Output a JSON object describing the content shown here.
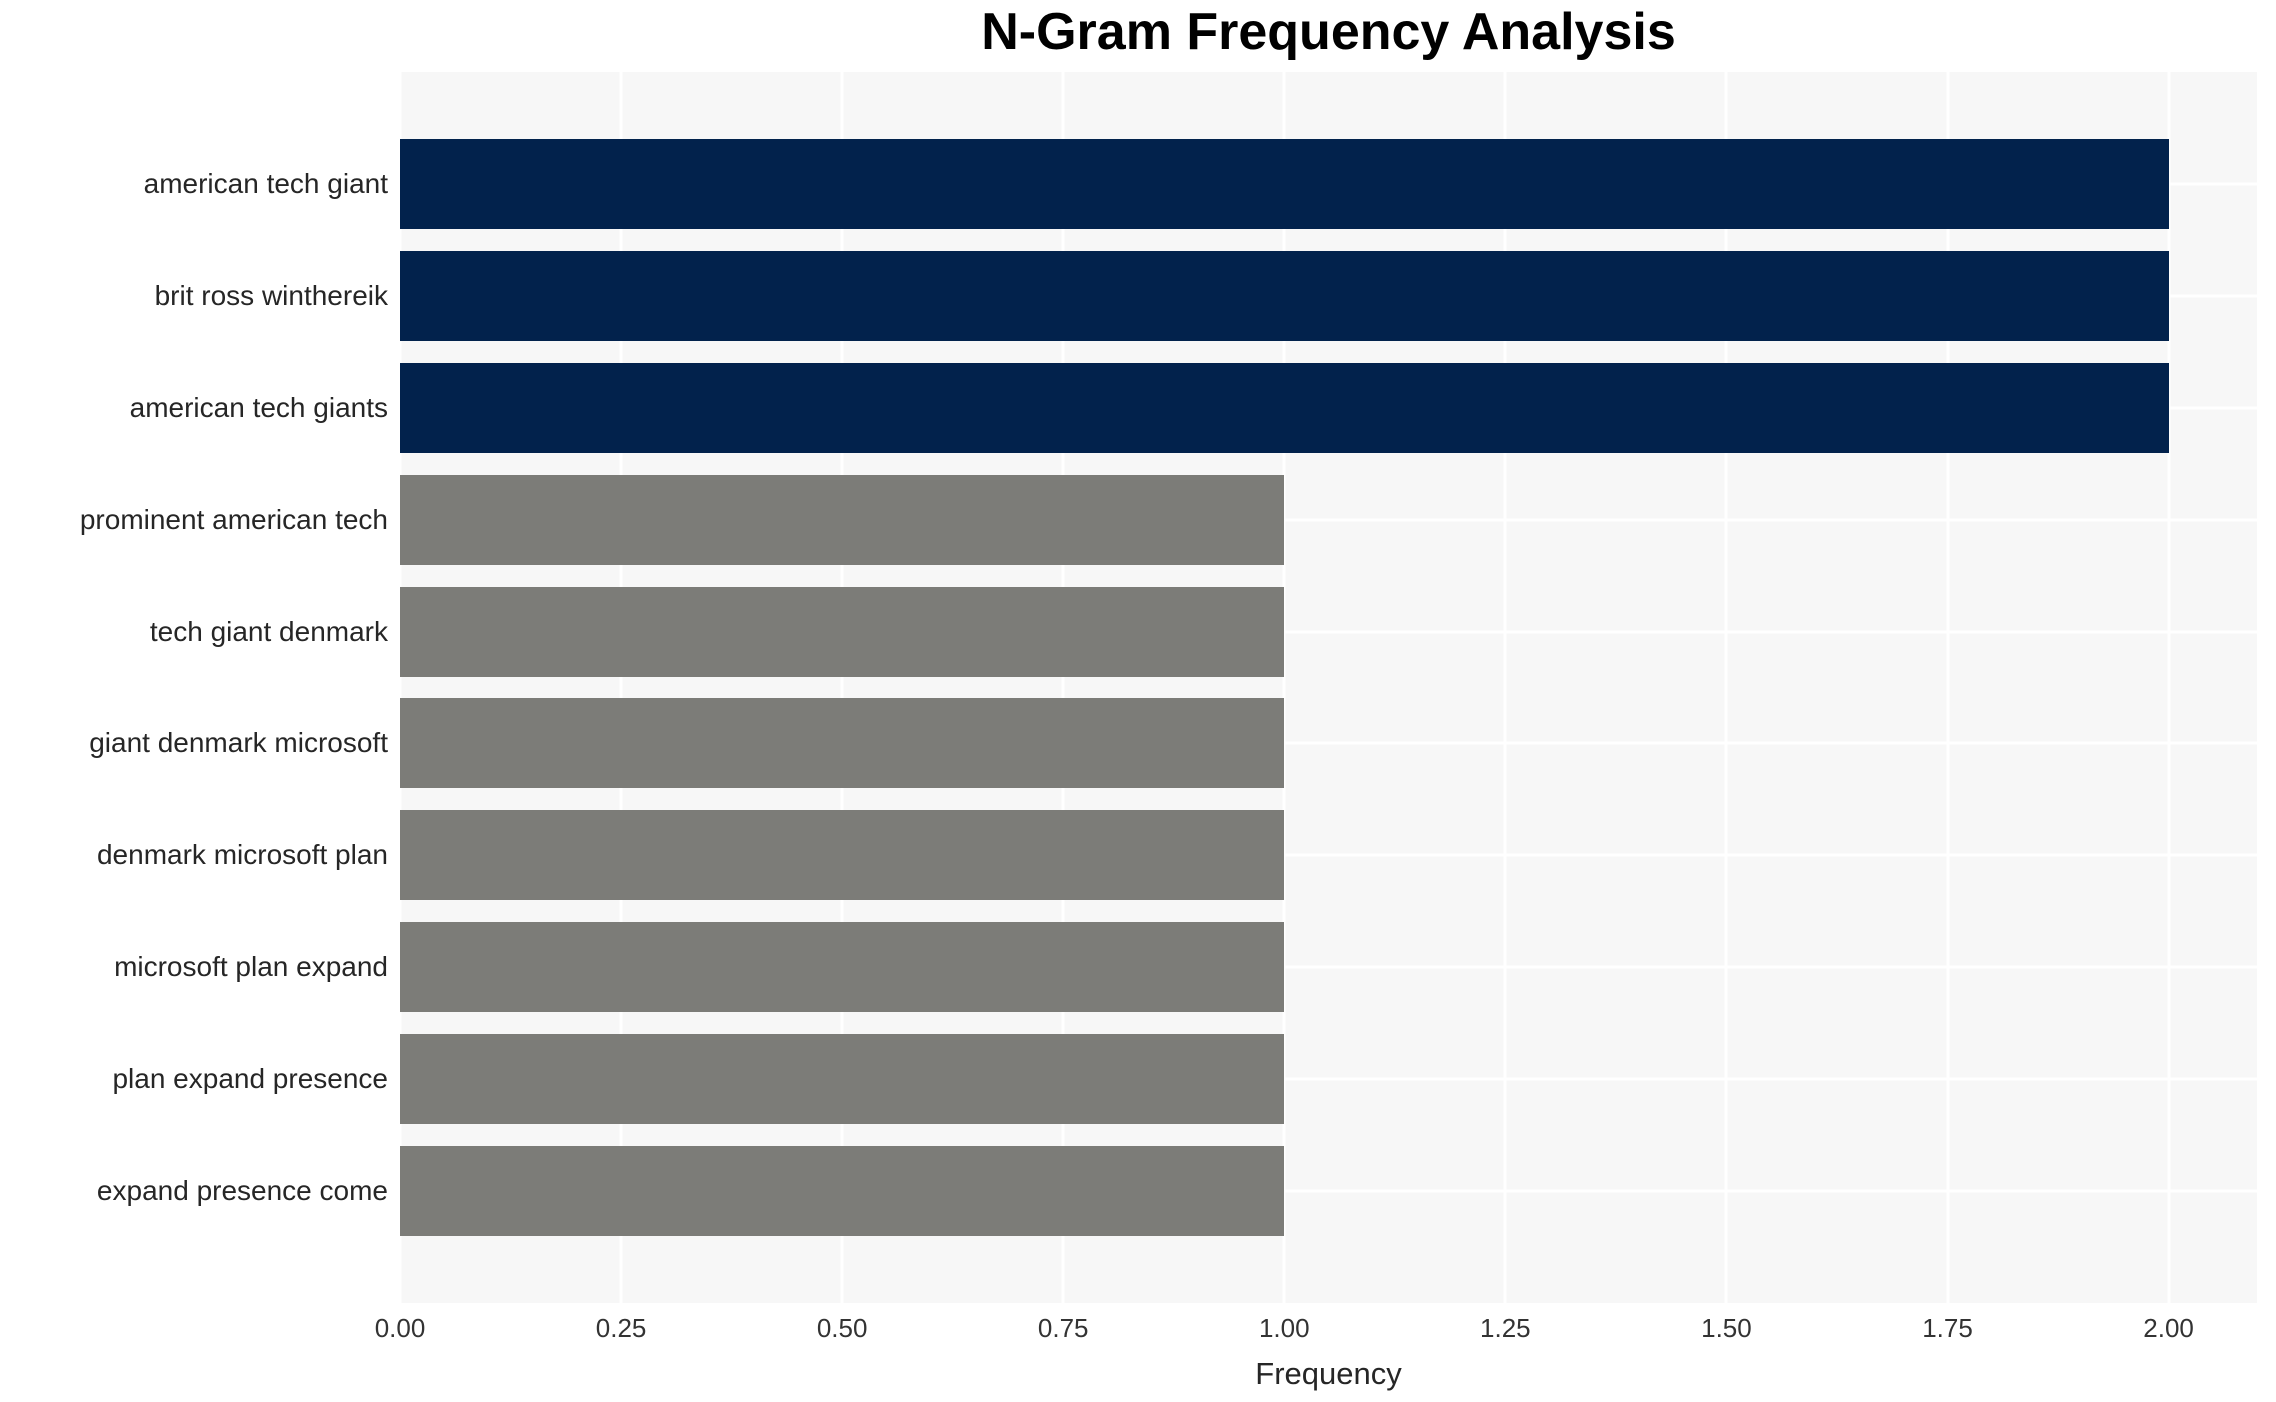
{
  "chart_data": {
    "type": "bar",
    "orientation": "horizontal",
    "title": "N-Gram Frequency Analysis",
    "xlabel": "Frequency",
    "ylabel": "",
    "categories": [
      "american tech giant",
      "brit ross winthereik",
      "american tech giants",
      "prominent american tech",
      "tech giant denmark",
      "giant denmark microsoft",
      "denmark microsoft plan",
      "microsoft plan expand",
      "plan expand presence",
      "expand presence come"
    ],
    "values": [
      2.0,
      2.0,
      2.0,
      1.0,
      1.0,
      1.0,
      1.0,
      1.0,
      1.0,
      1.0
    ],
    "bar_colors": [
      "#02224C",
      "#02224C",
      "#02224C",
      "#7C7C78",
      "#7C7C78",
      "#7C7C78",
      "#7C7C78",
      "#7C7C78",
      "#7C7C78",
      "#7C7C78"
    ],
    "xticks": [
      0.0,
      0.25,
      0.5,
      0.75,
      1.0,
      1.25,
      1.5,
      1.75,
      2.0
    ],
    "xtick_labels": [
      "0.00",
      "0.25",
      "0.50",
      "0.75",
      "1.00",
      "1.25",
      "1.50",
      "1.75",
      "2.00"
    ],
    "xlim": [
      0,
      2.1
    ],
    "grid": true,
    "legend": false,
    "colors": {
      "highlight_navy": "#02224C",
      "bar_gray": "#7C7C78",
      "plot_background": "#F7F7F7",
      "grid_line": "#FFFFFF",
      "label_text": "#262626",
      "tick_text": "#333333",
      "title_text": "#000000"
    }
  }
}
